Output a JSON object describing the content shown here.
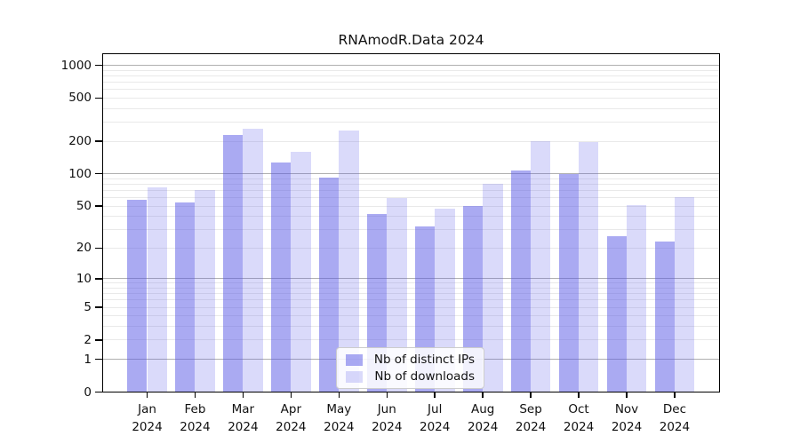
{
  "title": "RNAmodR.Data 2024",
  "chart_data": {
    "type": "bar",
    "title": "RNAmodR.Data 2024",
    "categories": [
      "Jan 2024",
      "Feb 2024",
      "Mar 2024",
      "Apr 2024",
      "May 2024",
      "Jun 2024",
      "Jul 2024",
      "Aug 2024",
      "Sep 2024",
      "Oct 2024",
      "Nov 2024",
      "Dec 2024"
    ],
    "series": [
      {
        "name": "Nb of distinct IPs",
        "values": [
          57,
          54,
          230,
          128,
          92,
          42,
          32,
          50,
          108,
          100,
          26,
          23
        ],
        "color": "rgba(85,85,230,0.5)"
      },
      {
        "name": "Nb of downloads",
        "values": [
          75,
          70,
          260,
          160,
          250,
          60,
          47,
          80,
          200,
          195,
          51,
          61
        ],
        "color": "rgba(85,85,230,0.22)"
      }
    ],
    "yscale": "log1p",
    "ylim": [
      0,
      1300
    ],
    "yticks": [
      0,
      1,
      2,
      5,
      10,
      20,
      50,
      100,
      200,
      500,
      1000
    ],
    "xlabel": "",
    "ylabel": "",
    "grid": "horizontal",
    "legend_position": "lower center inside"
  },
  "colors": {
    "bar_base": "#5555e6",
    "major_grid": "#b0b0b0",
    "minor_grid": "#e9e9e9",
    "axis": "#000000",
    "text": "#111111",
    "legend_border": "#cccccc",
    "legend_bg": "rgba(255,255,255,0.85)"
  }
}
